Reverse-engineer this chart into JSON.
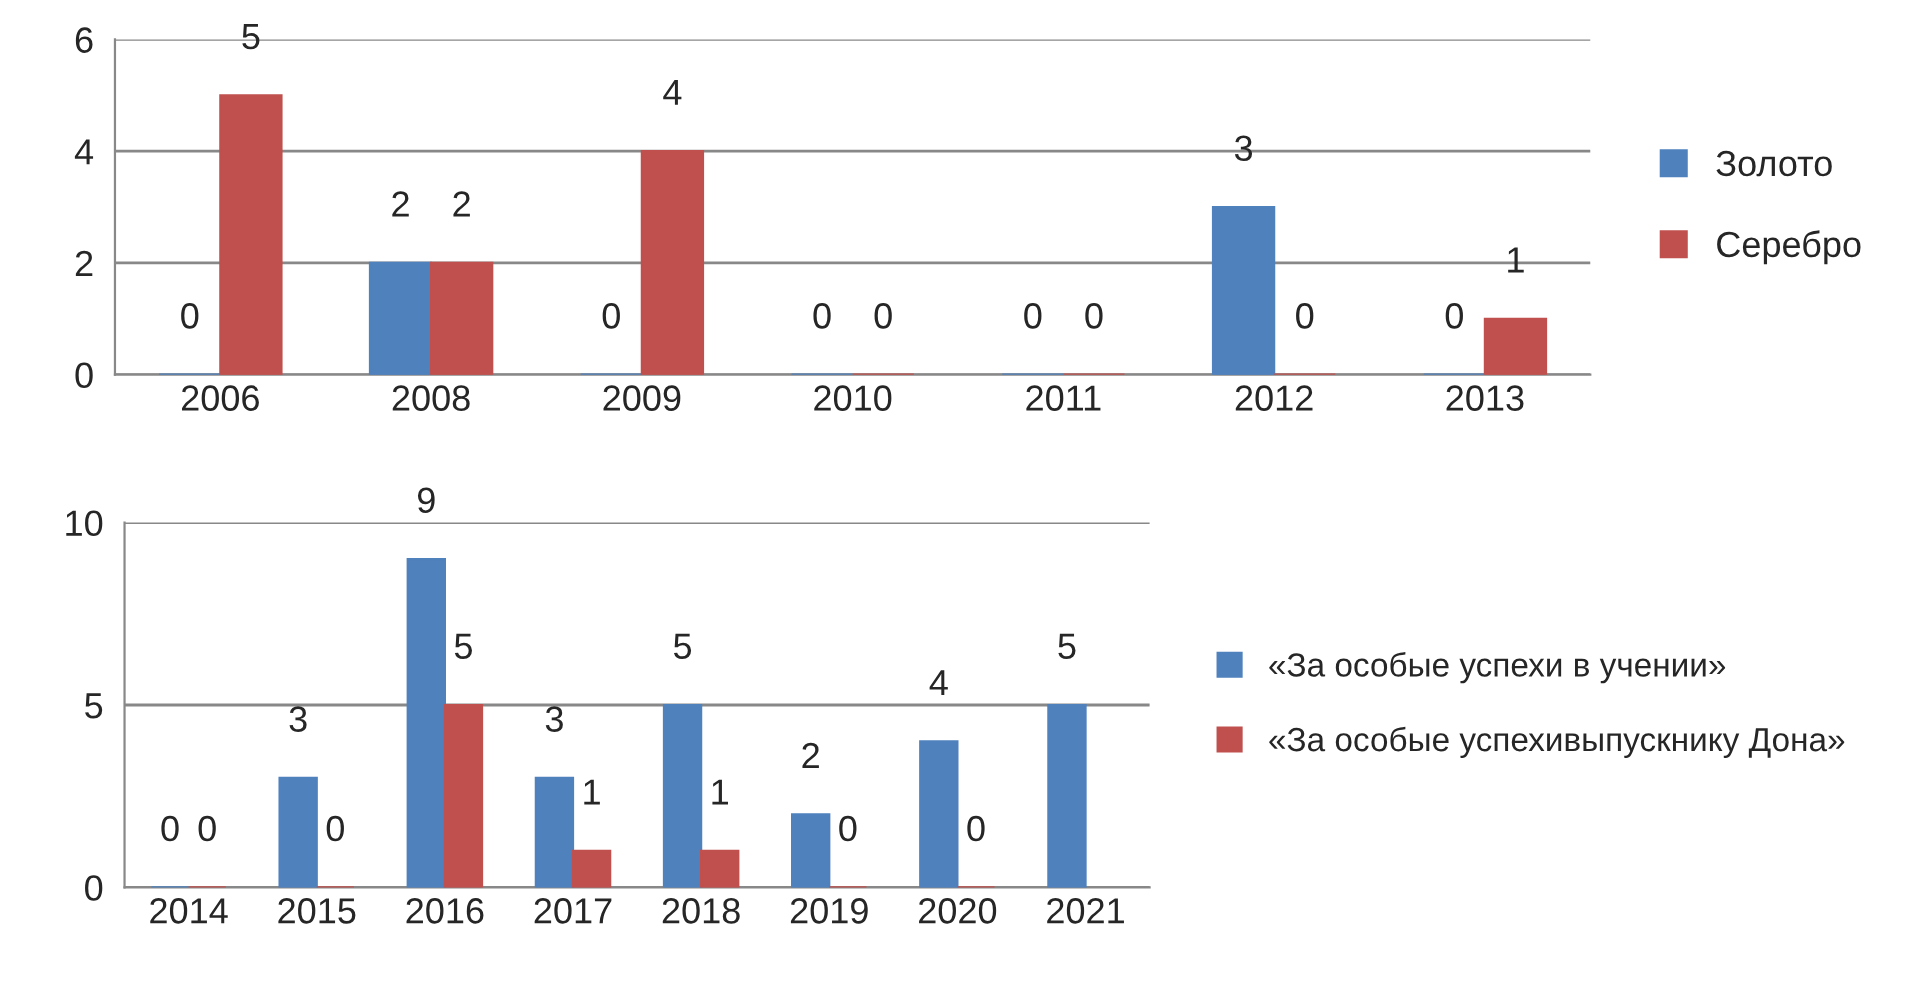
{
  "chart_data": [
    {
      "type": "bar",
      "categories": [
        "2006",
        "2008",
        "2009",
        "2010",
        "2011",
        "2012",
        "2013"
      ],
      "series": [
        {
          "name": "Золото",
          "color": "#4f81bd",
          "values": [
            0,
            2,
            0,
            0,
            0,
            3,
            0
          ]
        },
        {
          "name": "Серебро",
          "color": "#c0504d",
          "values": [
            5,
            2,
            4,
            0,
            0,
            0,
            1
          ]
        }
      ],
      "ylim": [
        0,
        6
      ],
      "yticks": [
        0,
        2,
        4,
        6
      ],
      "grid": "y",
      "legend": "right",
      "data_labels": true
    },
    {
      "type": "bar",
      "categories": [
        "2014",
        "2015",
        "2016",
        "2017",
        "2018",
        "2019",
        "2020",
        "2021"
      ],
      "series": [
        {
          "name": "«За особые успехи в учении»",
          "color": "#4f81bd",
          "values": [
            0,
            3,
            9,
            3,
            5,
            2,
            4,
            5
          ]
        },
        {
          "name": "«За особые успехивыпускнику Дона»",
          "color": "#c0504d",
          "values": [
            0,
            0,
            5,
            1,
            1,
            0,
            0,
            null
          ]
        }
      ],
      "ylim": [
        0,
        10
      ],
      "yticks": [
        0,
        5,
        10
      ],
      "grid": "y",
      "legend": "right",
      "data_labels": true
    }
  ]
}
